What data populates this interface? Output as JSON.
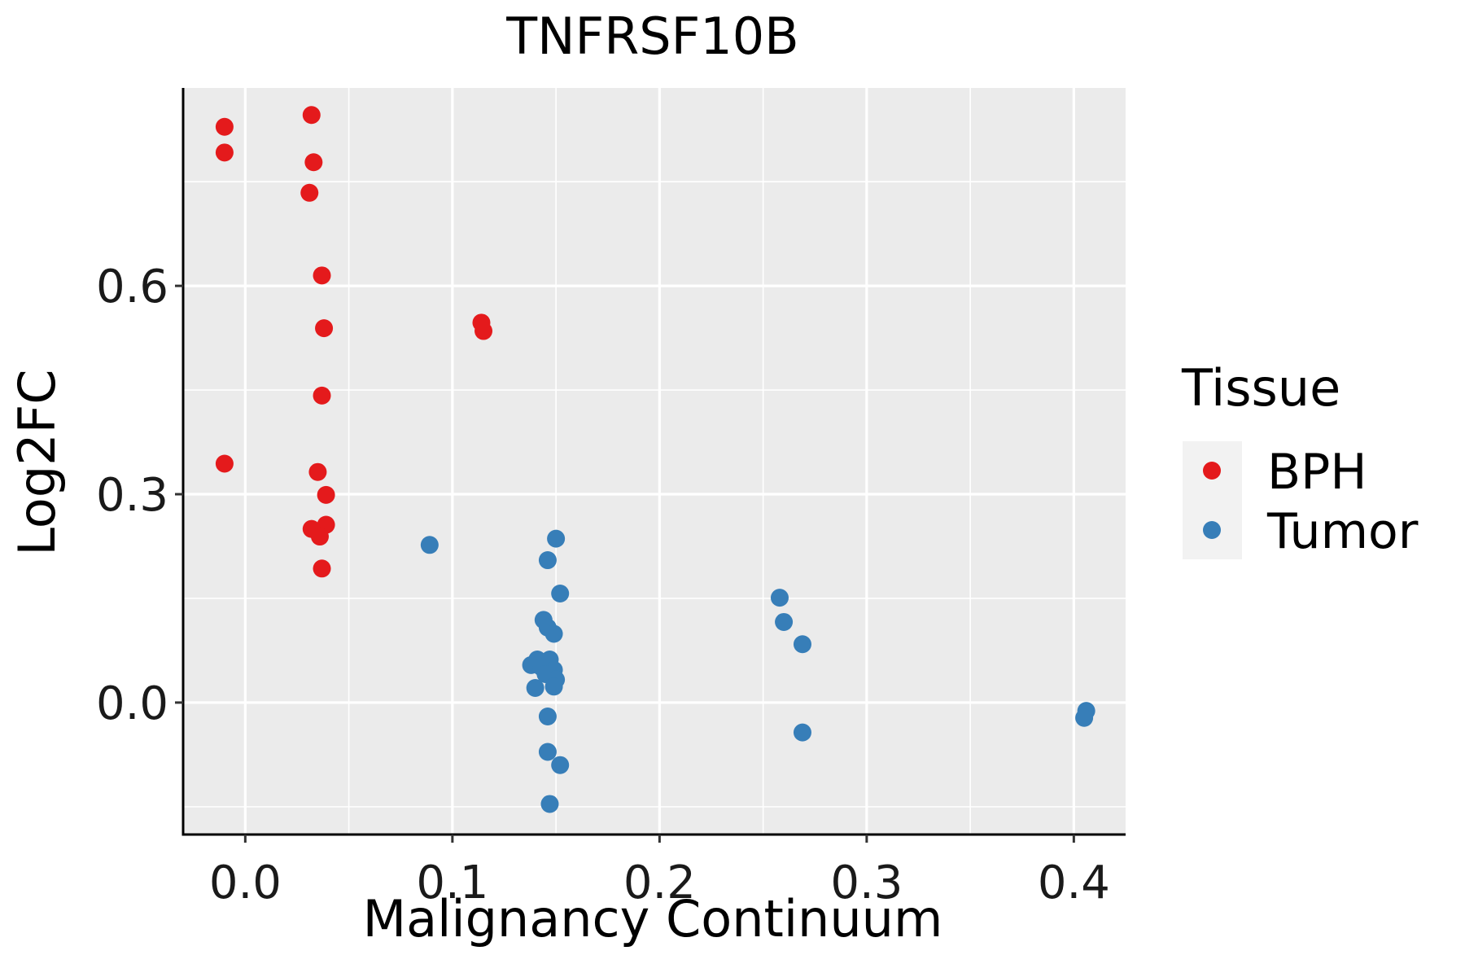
{
  "chart_data": {
    "type": "scatter",
    "title": "TNFRSF10B",
    "xlabel": "Malignancy Continuum",
    "ylabel": "Log2FC",
    "xlim": [
      -0.03,
      0.425
    ],
    "ylim": [
      -0.19,
      0.885
    ],
    "x_ticks": [
      0.0,
      0.1,
      0.2,
      0.3,
      0.4
    ],
    "x_tick_labels": [
      "0.0",
      "0.1",
      "0.2",
      "0.3",
      "0.4"
    ],
    "y_ticks": [
      0.0,
      0.3,
      0.6
    ],
    "y_tick_labels": [
      "0.0",
      "0.3",
      "0.6"
    ],
    "x_minor_ticks": [
      0.05,
      0.15,
      0.25,
      0.35
    ],
    "y_minor_ticks": [
      -0.15,
      0.15,
      0.45,
      0.75
    ],
    "grid": true,
    "legend": {
      "title": "Tissue",
      "position": "right",
      "entries": [
        "BPH",
        "Tumor"
      ]
    },
    "series": [
      {
        "name": "BPH",
        "color": "#e41a1c",
        "points": [
          [
            -0.01,
            0.829
          ],
          [
            -0.01,
            0.792
          ],
          [
            0.032,
            0.846
          ],
          [
            0.033,
            0.778
          ],
          [
            0.031,
            0.734
          ],
          [
            0.037,
            0.615
          ],
          [
            0.038,
            0.539
          ],
          [
            0.037,
            0.442
          ],
          [
            -0.01,
            0.344
          ],
          [
            0.035,
            0.332
          ],
          [
            0.039,
            0.299
          ],
          [
            0.039,
            0.256
          ],
          [
            0.032,
            0.25
          ],
          [
            0.036,
            0.239
          ],
          [
            0.037,
            0.193
          ],
          [
            0.114,
            0.547
          ],
          [
            0.115,
            0.535
          ]
        ]
      },
      {
        "name": "Tumor",
        "color": "#377eb8",
        "points": [
          [
            0.089,
            0.227
          ],
          [
            0.15,
            0.236
          ],
          [
            0.146,
            0.205
          ],
          [
            0.152,
            0.157
          ],
          [
            0.144,
            0.119
          ],
          [
            0.146,
            0.108
          ],
          [
            0.149,
            0.099
          ],
          [
            0.141,
            0.062
          ],
          [
            0.147,
            0.062
          ],
          [
            0.138,
            0.054
          ],
          [
            0.143,
            0.051
          ],
          [
            0.149,
            0.047
          ],
          [
            0.145,
            0.041
          ],
          [
            0.15,
            0.033
          ],
          [
            0.149,
            0.023
          ],
          [
            0.14,
            0.021
          ],
          [
            0.146,
            -0.02
          ],
          [
            0.146,
            -0.071
          ],
          [
            0.152,
            -0.09
          ],
          [
            0.147,
            -0.146
          ],
          [
            0.258,
            0.151
          ],
          [
            0.26,
            0.116
          ],
          [
            0.269,
            0.084
          ],
          [
            0.269,
            -0.043
          ],
          [
            0.406,
            -0.012
          ],
          [
            0.405,
            -0.022
          ]
        ]
      }
    ]
  }
}
